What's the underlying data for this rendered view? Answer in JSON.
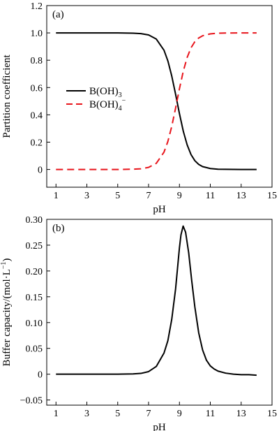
{
  "colors": {
    "series_a": "#000000",
    "series_b": "#e8141b"
  },
  "chart_data": [
    {
      "type": "line",
      "panel_label": "(a)",
      "xlabel": "pH",
      "ylabel": "Partition coefficient",
      "xlim": [
        0.4,
        15
      ],
      "ylim": [
        -0.13,
        1.2
      ],
      "xticks": [
        1,
        3,
        5,
        7,
        9,
        11,
        13,
        15
      ],
      "yticks": [
        0,
        0.2,
        0.4,
        0.6,
        0.8,
        1.0,
        1.2
      ],
      "ytick_labels": [
        "0",
        "0.2",
        "0.4",
        "0.6",
        "0.8",
        "1.0",
        "1.2"
      ],
      "legend_position": "middle-left",
      "series": [
        {
          "name": "B(OH)3",
          "legend_main": "B(OH)",
          "legend_sub": "3",
          "legend_sup": "",
          "style": "solid",
          "x": [
            1,
            2,
            3,
            4,
            5,
            6,
            6.5,
            7,
            7.5,
            8,
            8.25,
            8.5,
            8.75,
            9,
            9.25,
            9.5,
            9.75,
            10,
            10.25,
            10.5,
            11,
            11.5,
            12,
            13,
            14
          ],
          "y": [
            1.0,
            1.0,
            1.0,
            1.0,
            1.0,
            0.998,
            0.995,
            0.985,
            0.955,
            0.873,
            0.795,
            0.685,
            0.551,
            0.409,
            0.28,
            0.18,
            0.109,
            0.064,
            0.037,
            0.021,
            0.007,
            0.002,
            0.001,
            0.0,
            0.0
          ]
        },
        {
          "name": "B(OH)4−",
          "legend_main": "B(OH)",
          "legend_sub": "4",
          "legend_sup": "−",
          "style": "dashed",
          "x": [
            1,
            2,
            3,
            4,
            5,
            6,
            6.5,
            7,
            7.5,
            8,
            8.25,
            8.5,
            8.75,
            9,
            9.25,
            9.5,
            9.75,
            10,
            10.25,
            10.5,
            11,
            11.5,
            12,
            13,
            14
          ],
          "y": [
            0.0,
            0.0,
            0.0,
            0.0,
            0.0,
            0.002,
            0.005,
            0.015,
            0.045,
            0.127,
            0.205,
            0.315,
            0.449,
            0.591,
            0.72,
            0.82,
            0.891,
            0.936,
            0.963,
            0.979,
            0.993,
            0.998,
            0.999,
            1.0,
            1.0
          ]
        }
      ]
    },
    {
      "type": "line",
      "panel_label": "(b)",
      "xlabel": "pH",
      "ylabel_main": "Buffer capacity/(mol·L",
      "ylabel_sup": "−1",
      "ylabel_end": ")",
      "xlim": [
        0.4,
        15
      ],
      "ylim": [
        -0.06,
        0.3
      ],
      "xticks": [
        1,
        3,
        5,
        7,
        9,
        11,
        13,
        15
      ],
      "yticks": [
        -0.05,
        0,
        0.05,
        0.1,
        0.15,
        0.2,
        0.25,
        0.3
      ],
      "ytick_labels": [
        "−0.05",
        "0",
        "0.05",
        "0.10",
        "0.15",
        "0.20",
        "0.25",
        "0.30"
      ],
      "series": [
        {
          "name": "",
          "style": "solid",
          "x": [
            1,
            2,
            3,
            4,
            5,
            6,
            6.5,
            7,
            7.5,
            8,
            8.25,
            8.5,
            8.75,
            9,
            9.1,
            9.24,
            9.4,
            9.6,
            9.8,
            10,
            10.25,
            10.5,
            10.75,
            11,
            11.25,
            11.5,
            12,
            12.5,
            13,
            13.5,
            14
          ],
          "y": [
            0,
            0,
            0,
            0,
            0,
            0.0005,
            0.0015,
            0.005,
            0.015,
            0.041,
            0.065,
            0.106,
            0.165,
            0.245,
            0.27,
            0.287,
            0.275,
            0.235,
            0.18,
            0.13,
            0.08,
            0.047,
            0.027,
            0.016,
            0.01,
            0.006,
            0.002,
            0.0,
            -0.001,
            -0.001,
            -0.002
          ]
        }
      ]
    }
  ]
}
